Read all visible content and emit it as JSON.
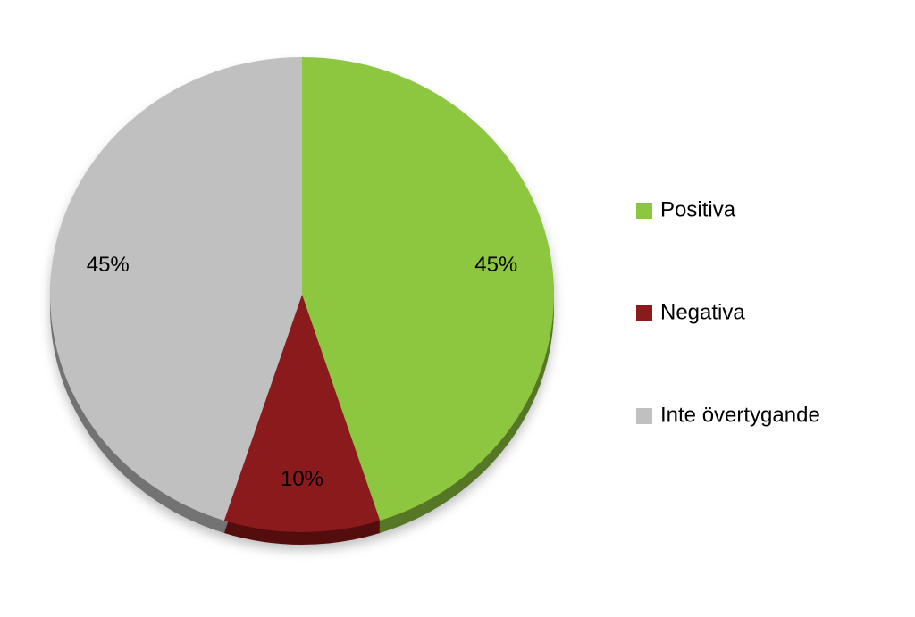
{
  "chart_data": {
    "type": "pie",
    "categories": [
      "Positiva",
      "Negativa",
      "Inte övertygande"
    ],
    "values": [
      45,
      10,
      45
    ],
    "value_labels": [
      "45%",
      "10%",
      "45%"
    ],
    "colors": [
      "#8dc63f",
      "#8b1a1d",
      "#c0c0c0"
    ],
    "legend": "right"
  }
}
